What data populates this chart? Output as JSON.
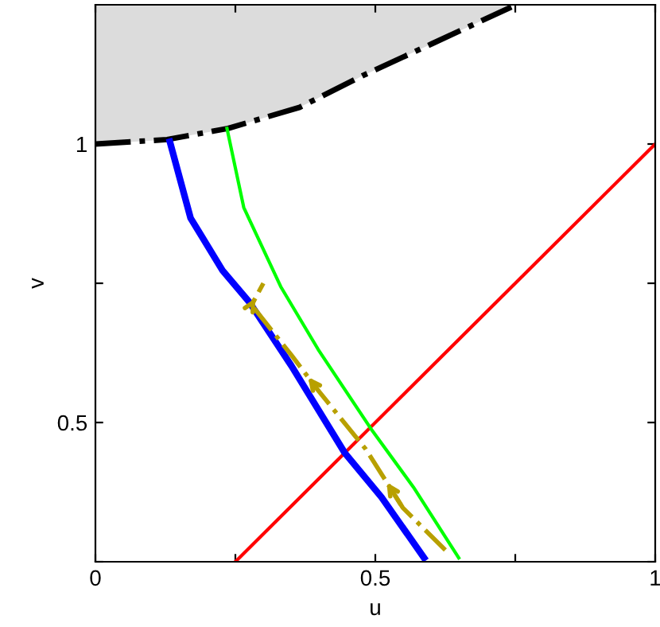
{
  "chart_data": {
    "type": "line",
    "xlabel": "u",
    "ylabel": "v",
    "xlim": [
      0,
      1
    ],
    "ylim": [
      0.25,
      1.25
    ],
    "xticks": [
      0,
      {
        "value": 0.25,
        "label": null
      },
      0.5,
      {
        "value": 0.75,
        "label": null
      },
      1
    ],
    "yticks": [
      {
        "value": 0.25,
        "label": null
      },
      0.5,
      {
        "value": 0.75,
        "label": null
      },
      1
    ],
    "grid": false,
    "series": [
      {
        "type": "line",
        "color": "#000000",
        "line_style": "dashdot",
        "x": [
          0,
          0.128,
          0.237,
          0.365,
          0.478,
          0.601,
          0.743
        ],
        "values": [
          1.0,
          1.008,
          1.028,
          1.066,
          1.123,
          1.18,
          1.246
        ]
      },
      {
        "color": "#ff0000",
        "line_style": "solid",
        "x": [
          0.25,
          1
        ],
        "values": [
          0.25,
          1
        ]
      },
      {
        "color": "#0000ff",
        "line_style": "solid",
        "x": [
          0.133,
          0.17,
          0.227,
          0.275,
          0.35,
          0.445,
          0.511,
          0.587
        ],
        "values": [
          1.004,
          0.867,
          0.773,
          0.716,
          0.602,
          0.446,
          0.366,
          0.257
        ]
      },
      {
        "color": "#00ff00",
        "line_style": "solid",
        "x": [
          0.235,
          0.265,
          0.331,
          0.398,
          0.492,
          0.568,
          0.649
        ],
        "values": [
          1.028,
          0.886,
          0.744,
          0.631,
          0.489,
          0.384,
          0.257
        ]
      },
      {
        "color": "#b8a000",
        "line_style": "dashdot",
        "x": [
          0.625,
          0.549,
          0.483,
          0.4,
          0.35,
          0.279,
          0.3
        ],
        "values": [
          0.271,
          0.347,
          0.452,
          0.555,
          0.621,
          0.711,
          0.75
        ]
      }
    ]
  }
}
